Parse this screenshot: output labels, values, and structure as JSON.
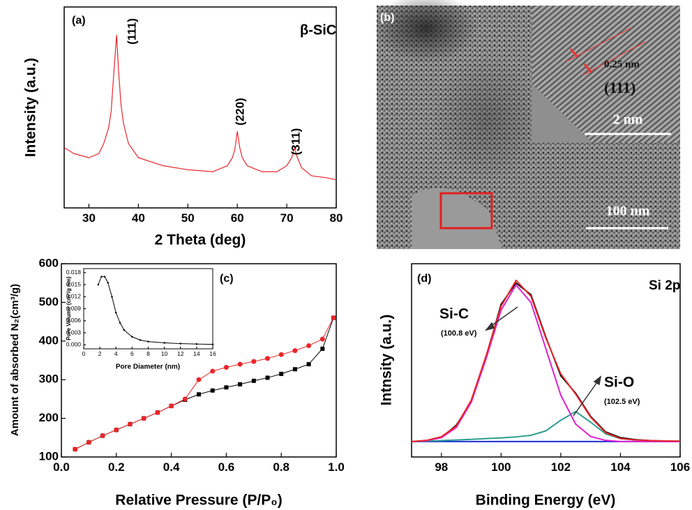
{
  "chart_data": [
    {
      "type": "line",
      "panel_label": "(a)",
      "xlabel": "2 Theta (deg)",
      "ylabel": "Intensity (a.u.)",
      "annotations": [
        "β-SiC",
        "(111)",
        "(220)",
        "(311)"
      ],
      "xlim": [
        25,
        80
      ],
      "xticks": [
        30,
        40,
        50,
        60,
        70,
        80
      ],
      "ylim": [
        0,
        100
      ],
      "x": [
        25,
        27,
        30,
        32,
        33,
        34,
        34.5,
        35,
        35.6,
        36,
        36.5,
        37,
        38,
        40,
        45,
        50,
        55,
        58,
        59,
        59.5,
        60,
        60.5,
        61,
        62,
        65,
        68,
        70,
        71,
        71.6,
        72,
        73,
        75,
        78,
        80
      ],
      "series": [
        {
          "color": "#e8262a",
          "values": [
            30,
            27,
            25,
            27,
            32,
            40,
            48,
            66,
            86,
            68,
            51,
            42,
            32,
            25,
            21,
            19,
            18,
            21,
            25,
            29,
            38,
            30,
            25,
            21,
            18,
            18,
            21,
            25,
            30,
            26,
            20,
            16,
            15,
            14
          ]
        }
      ]
    },
    {
      "type": "image",
      "panel_label": "(b)",
      "annotations": [
        "0.25 nm",
        "(111)",
        "2 nm",
        "100 nm"
      ]
    },
    {
      "type": "line",
      "panel_label": "(c)",
      "xlabel": "Relative Pressure (P/P₀)",
      "ylabel": "Amount of absorbed N₂(cm³/g)",
      "xlim": [
        0,
        1
      ],
      "xticks": [
        {
          "value": 0,
          "label": "0.0"
        },
        0.2,
        0.4,
        0.6,
        0.8,
        {
          "value": 1,
          "label": "1.0"
        }
      ],
      "ylim": [
        100,
        600
      ],
      "yticks": [
        100,
        200,
        300,
        400,
        500,
        600
      ],
      "x": [
        0.05,
        0.1,
        0.15,
        0.2,
        0.25,
        0.3,
        0.35,
        0.4,
        0.45,
        0.5,
        0.55,
        0.6,
        0.65,
        0.7,
        0.75,
        0.8,
        0.85,
        0.9,
        0.95,
        0.99
      ],
      "series": [
        {
          "color": "#000000",
          "marker": "square",
          "values": [
            120,
            138,
            155,
            170,
            185,
            200,
            215,
            232,
            248,
            262,
            272,
            280,
            288,
            297,
            305,
            315,
            327,
            340,
            380,
            460
          ]
        },
        {
          "color": "#e8262a",
          "marker": "circle",
          "values": [
            120,
            138,
            155,
            170,
            185,
            200,
            215,
            232,
            250,
            300,
            322,
            332,
            340,
            347,
            355,
            365,
            375,
            388,
            405,
            460
          ]
        }
      ]
    },
    {
      "type": "line",
      "xlabel": "Pore Diameter (nm)",
      "ylabel": "Pore Volume (cm³/g nm)",
      "xlim": [
        0,
        16
      ],
      "xticks": [
        0,
        2,
        4,
        6,
        8,
        10,
        12,
        14,
        16
      ],
      "ylim": [
        -0.001,
        0.019
      ],
      "yticks": [
        {
          "value": 0,
          "label": "0.000"
        },
        0.003,
        0.006,
        0.009,
        0.012,
        0.015,
        0.018
      ],
      "x": [
        1.8,
        2.2,
        2.6,
        3,
        3.5,
        4,
        4.5,
        5,
        6,
        7,
        8,
        10,
        12,
        14,
        16
      ],
      "series": [
        {
          "color": "#000000",
          "marker": "dot",
          "values": [
            0.015,
            0.017,
            0.017,
            0.0155,
            0.012,
            0.008,
            0.0055,
            0.0037,
            0.002,
            0.0012,
            0.0008,
            0.0005,
            0.0003,
            0.0002,
            0.0001
          ]
        }
      ]
    },
    {
      "type": "line",
      "panel_label": "(d)",
      "xlabel": "Binding Energy (eV)",
      "ylabel": "Intnsity (a.u.)",
      "annotations": [
        "Si 2p",
        "Si-C",
        "(100.8 eV)",
        "Si-O",
        "(102.5 eV)"
      ],
      "xlim": [
        97,
        106
      ],
      "xticks": [
        98,
        100,
        102,
        104,
        106
      ],
      "ylim": [
        0,
        100
      ],
      "x": [
        97,
        97.5,
        98,
        98.5,
        99,
        99.5,
        100,
        100.5,
        101,
        101.5,
        102,
        102.5,
        103,
        103.5,
        104,
        104.5,
        105,
        105.5,
        106
      ],
      "series": [
        {
          "color": "#1c2fd6",
          "values": [
            8,
            8,
            8,
            8,
            8,
            8,
            8,
            8,
            8,
            8,
            8,
            8,
            8,
            8,
            8,
            8,
            8,
            8,
            8
          ]
        },
        {
          "color": "#2a9d8f",
          "values": [
            8,
            8.2,
            8.5,
            8.8,
            9.1,
            9.5,
            9.9,
            10.4,
            11.2,
            13.5,
            19,
            23.5,
            18,
            12,
            9.5,
            8.8,
            8.5,
            8.3,
            8.2
          ]
        },
        {
          "color": "#111111",
          "values": [
            null,
            null,
            10,
            16.5,
            28.5,
            52,
            79,
            90,
            84,
            62,
            42,
            33,
            21,
            13,
            10,
            9,
            8.5,
            null,
            null
          ]
        },
        {
          "color": "#e020d0",
          "values": [
            8,
            8.4,
            10,
            15.3,
            28.3,
            51,
            76,
            89,
            80,
            56,
            32,
            17,
            10.6,
            8.6,
            8,
            8,
            8,
            8,
            8
          ]
        },
        {
          "color": "#e8262a",
          "values": [
            8,
            8.6,
            10.5,
            16,
            29.4,
            52.5,
            78,
            91.4,
            83.2,
            61.5,
            43,
            32.5,
            20.6,
            12.6,
            9.5,
            8.8,
            8.5,
            8.3,
            8.2
          ]
        }
      ]
    }
  ]
}
